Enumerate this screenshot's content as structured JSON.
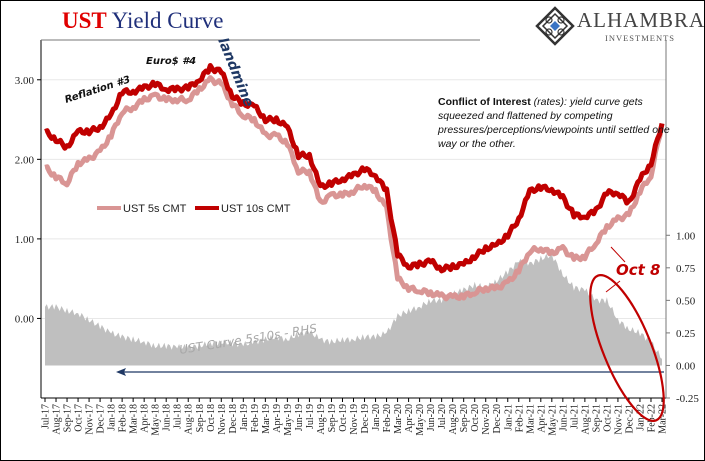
{
  "title": {
    "part1": "UST",
    "part2": "Yield Curve"
  },
  "logo": {
    "name": "ALHAMBRA",
    "sub": "INVESTMENTS",
    "icon": "diamond-lattice-icon"
  },
  "note": {
    "bold": "Conflict of Interest",
    "italic": " (rates): yield curve gets squeezed and flattened by competing pressures/perceptions/viewpoints until settled one way or the other."
  },
  "colors": {
    "title_red": "#e00000",
    "title_blue": "#1f2f7a",
    "ust10": "#c00000",
    "ust5": "#d99594",
    "spread": "#bfbfbf",
    "annotation_red": "#c00000",
    "arrow_navy": "#1f3864",
    "landmine_blue": "#1f3864"
  },
  "chart_data": {
    "type": "line",
    "title": "UST Yield Curve",
    "xlabel": "",
    "ylabel": "",
    "x": [
      "Jul-17",
      "Aug-17",
      "Sep-17",
      "Oct-17",
      "Nov-17",
      "Dec-17",
      "Jan-18",
      "Feb-18",
      "Mar-18",
      "Apr-18",
      "May-18",
      "Jun-18",
      "Jul-18",
      "Aug-18",
      "Sep-18",
      "Oct-18",
      "Nov-18",
      "Dec-18",
      "Jan-19",
      "Feb-19",
      "Mar-19",
      "Apr-19",
      "May-19",
      "Jun-19",
      "Jul-19",
      "Aug-19",
      "Sep-19",
      "Oct-19",
      "Nov-19",
      "Dec-19",
      "Jan-20",
      "Feb-20",
      "Mar-20",
      "Apr-20",
      "May-20",
      "Jun-20",
      "Jul-20",
      "Aug-20",
      "Sep-20",
      "Oct-20",
      "Nov-20",
      "Dec-20",
      "Jan-21",
      "Feb-21",
      "Mar-21",
      "Apr-21",
      "May-21",
      "Jun-21",
      "Jul-21",
      "Aug-21",
      "Sep-21",
      "Oct-21",
      "Nov-21",
      "Dec-21",
      "Jan-22",
      "Feb-22",
      "Mar-22"
    ],
    "left_axis": {
      "ylim": [
        -1.0,
        3.5
      ],
      "ticks": [
        "3.00",
        "2.00",
        "1.00",
        "0.00"
      ],
      "tick_values": [
        3,
        2,
        1,
        0
      ]
    },
    "right_axis": {
      "ylim": [
        -0.25,
        2.5
      ],
      "ticks": [
        "1.00",
        "0.75",
        "0.50",
        "0.25",
        "0.00",
        "-0.25"
      ],
      "tick_values": [
        1,
        0.75,
        0.5,
        0.25,
        0,
        -0.25
      ]
    },
    "grid": true,
    "legend": {
      "placement": "left-middle",
      "entries": [
        "UST 5s CMT",
        "UST 10s CMT"
      ]
    },
    "series": [
      {
        "name": "UST 5s CMT",
        "axis": "left",
        "style": "line",
        "values": [
          1.9,
          1.78,
          1.7,
          1.95,
          2.0,
          2.1,
          2.3,
          2.6,
          2.65,
          2.75,
          2.8,
          2.75,
          2.75,
          2.75,
          2.88,
          3.0,
          2.95,
          2.7,
          2.55,
          2.5,
          2.3,
          2.3,
          2.2,
          1.85,
          1.85,
          1.45,
          1.55,
          1.55,
          1.6,
          1.68,
          1.6,
          1.38,
          0.5,
          0.38,
          0.35,
          0.32,
          0.28,
          0.27,
          0.28,
          0.33,
          0.38,
          0.38,
          0.45,
          0.6,
          0.85,
          0.88,
          0.82,
          0.88,
          0.75,
          0.78,
          0.95,
          1.15,
          1.25,
          1.3,
          1.6,
          1.8,
          2.45
        ]
      },
      {
        "name": "UST 10s CMT",
        "axis": "left",
        "style": "line",
        "values": [
          2.35,
          2.25,
          2.15,
          2.35,
          2.35,
          2.4,
          2.55,
          2.85,
          2.85,
          2.9,
          2.95,
          2.88,
          2.88,
          2.9,
          3.0,
          3.15,
          3.1,
          2.8,
          2.7,
          2.67,
          2.5,
          2.5,
          2.4,
          2.05,
          2.05,
          1.65,
          1.7,
          1.75,
          1.8,
          1.88,
          1.8,
          1.6,
          0.8,
          0.65,
          0.68,
          0.72,
          0.62,
          0.65,
          0.68,
          0.78,
          0.88,
          0.92,
          1.05,
          1.25,
          1.6,
          1.65,
          1.62,
          1.52,
          1.3,
          1.28,
          1.35,
          1.58,
          1.58,
          1.45,
          1.75,
          1.95,
          2.45
        ]
      },
      {
        "name": "UST Curve 5s10s - RHS",
        "axis": "right",
        "style": "area",
        "values": [
          0.45,
          0.45,
          0.42,
          0.4,
          0.35,
          0.3,
          0.25,
          0.22,
          0.2,
          0.18,
          0.15,
          0.15,
          0.14,
          0.14,
          0.15,
          0.17,
          0.18,
          0.17,
          0.16,
          0.18,
          0.2,
          0.22,
          0.2,
          0.24,
          0.26,
          0.2,
          0.18,
          0.2,
          0.2,
          0.22,
          0.22,
          0.25,
          0.38,
          0.42,
          0.45,
          0.5,
          0.5,
          0.55,
          0.58,
          0.62,
          0.6,
          0.65,
          0.72,
          0.8,
          0.78,
          0.82,
          0.85,
          0.7,
          0.6,
          0.58,
          0.5,
          0.5,
          0.35,
          0.28,
          0.25,
          0.18,
          0.05
        ]
      }
    ],
    "annotations": [
      {
        "text": "Reflation #3",
        "near": "Jan-18"
      },
      {
        "text": "Euro$ #4",
        "near": "Jun-18"
      },
      {
        "text": "landmine",
        "near": "Nov-18"
      },
      {
        "text": "UST Curve 5s10s - RHS",
        "near": "Apr-19"
      },
      {
        "text": "Oct 8",
        "near": "Oct-21"
      }
    ]
  }
}
